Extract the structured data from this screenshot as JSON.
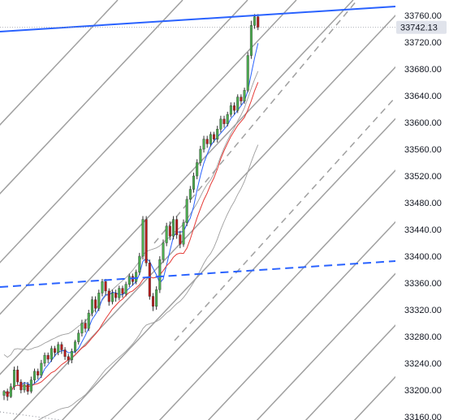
{
  "chart_data": {
    "type": "candlestick",
    "title": "",
    "xlabel": "",
    "ylabel": "",
    "ylim": [
      33160,
      33775
    ],
    "y_ticks": [
      "33760.00",
      "33720.00",
      "33680.00",
      "33640.00",
      "33600.00",
      "33560.00",
      "33520.00",
      "33480.00",
      "33440.00",
      "33400.00",
      "33360.00",
      "33320.00",
      "33280.00",
      "33240.00",
      "33200.00",
      "33160.00"
    ],
    "last_price": "33742.13",
    "colors": {
      "up": "#4caf50",
      "down": "#b71c1c",
      "wick": "#333333",
      "fast_ma": "#2962ff",
      "slow_ma": "#e53935",
      "envelope": "#9e9e9e",
      "fan_lines": "#a0a0a0",
      "trend_lines": "#2962ff",
      "badge": "#e0e3eb"
    },
    "candles": [
      [
        33192,
        33198,
        33185,
        33200
      ],
      [
        33198,
        33190,
        33184,
        33202
      ],
      [
        33190,
        33205,
        33188,
        33210
      ],
      [
        33205,
        33230,
        33200,
        33235
      ],
      [
        33230,
        33212,
        33208,
        33236
      ],
      [
        33212,
        33200,
        33195,
        33216
      ],
      [
        33200,
        33208,
        33196,
        33212
      ],
      [
        33208,
        33198,
        33193,
        33212
      ],
      [
        33198,
        33215,
        33195,
        33220
      ],
      [
        33215,
        33228,
        33210,
        33232
      ],
      [
        33228,
        33222,
        33216,
        33232
      ],
      [
        33222,
        33240,
        33218,
        33245
      ],
      [
        33240,
        33252,
        33235,
        33256
      ],
      [
        33252,
        33246,
        33240,
        33256
      ],
      [
        33246,
        33262,
        33242,
        33266
      ],
      [
        33262,
        33256,
        33250,
        33266
      ],
      [
        33256,
        33268,
        33252,
        33272
      ],
      [
        33268,
        33260,
        33254,
        33272
      ],
      [
        33260,
        33250,
        33245,
        33264
      ],
      [
        33250,
        33245,
        33238,
        33254
      ],
      [
        33245,
        33258,
        33240,
        33262
      ],
      [
        33258,
        33272,
        33255,
        33275
      ],
      [
        33272,
        33285,
        33268,
        33290
      ],
      [
        33285,
        33300,
        33280,
        33305
      ],
      [
        33300,
        33292,
        33286,
        33306
      ],
      [
        33292,
        33315,
        33288,
        33320
      ],
      [
        33315,
        33335,
        33310,
        33340
      ],
      [
        33335,
        33322,
        33316,
        33340
      ],
      [
        33322,
        33345,
        33318,
        33350
      ],
      [
        33345,
        33362,
        33340,
        33366
      ],
      [
        33362,
        33348,
        33342,
        33366
      ],
      [
        33348,
        33332,
        33326,
        33352
      ],
      [
        33332,
        33345,
        33328,
        33350
      ],
      [
        33345,
        33338,
        33332,
        33350
      ],
      [
        33338,
        33352,
        33334,
        33356
      ],
      [
        33352,
        33344,
        33338,
        33356
      ],
      [
        33344,
        33358,
        33340,
        33362
      ],
      [
        33358,
        33370,
        33354,
        33374
      ],
      [
        33370,
        33362,
        33356,
        33374
      ],
      [
        33362,
        33376,
        33358,
        33380
      ],
      [
        33376,
        33400,
        33372,
        33405
      ],
      [
        33400,
        33455,
        33395,
        33460
      ],
      [
        33455,
        33390,
        33385,
        33460
      ],
      [
        33390,
        33340,
        33335,
        33395
      ],
      [
        33340,
        33325,
        33318,
        33345
      ],
      [
        33325,
        33350,
        33320,
        33355
      ],
      [
        33350,
        33395,
        33345,
        33400
      ],
      [
        33395,
        33420,
        33390,
        33425
      ],
      [
        33420,
        33445,
        33415,
        33450
      ],
      [
        33445,
        33430,
        33424,
        33452
      ],
      [
        33430,
        33455,
        33425,
        33460
      ],
      [
        33455,
        33432,
        33426,
        33460
      ],
      [
        33432,
        33418,
        33412,
        33438
      ],
      [
        33418,
        33450,
        33414,
        33455
      ],
      [
        33450,
        33485,
        33445,
        33490
      ],
      [
        33485,
        33500,
        33480,
        33505
      ],
      [
        33500,
        33520,
        33495,
        33525
      ],
      [
        33520,
        33540,
        33515,
        33545
      ],
      [
        33540,
        33560,
        33535,
        33565
      ],
      [
        33560,
        33575,
        33555,
        33580
      ],
      [
        33575,
        33568,
        33562,
        33580
      ],
      [
        33568,
        33582,
        33564,
        33586
      ],
      [
        33582,
        33575,
        33570,
        33586
      ],
      [
        33575,
        33590,
        33570,
        33595
      ],
      [
        33590,
        33605,
        33585,
        33610
      ],
      [
        33605,
        33598,
        33592,
        33610
      ],
      [
        33598,
        33612,
        33594,
        33616
      ],
      [
        33612,
        33625,
        33608,
        33630
      ],
      [
        33625,
        33618,
        33612,
        33630
      ],
      [
        33618,
        33638,
        33614,
        33642
      ],
      [
        33638,
        33632,
        33626,
        33642
      ],
      [
        33632,
        33648,
        33628,
        33652
      ],
      [
        33648,
        33700,
        33645,
        33705
      ],
      [
        33700,
        33745,
        33695,
        33752
      ],
      [
        33745,
        33758,
        33740,
        33762
      ],
      [
        33758,
        33742,
        33738,
        33762
      ]
    ],
    "annotations": {
      "upper_trendline": [
        [
          33742,
          33775
        ]
      ],
      "lower_trendline": [
        [
          33360,
          33395
        ]
      ]
    }
  }
}
